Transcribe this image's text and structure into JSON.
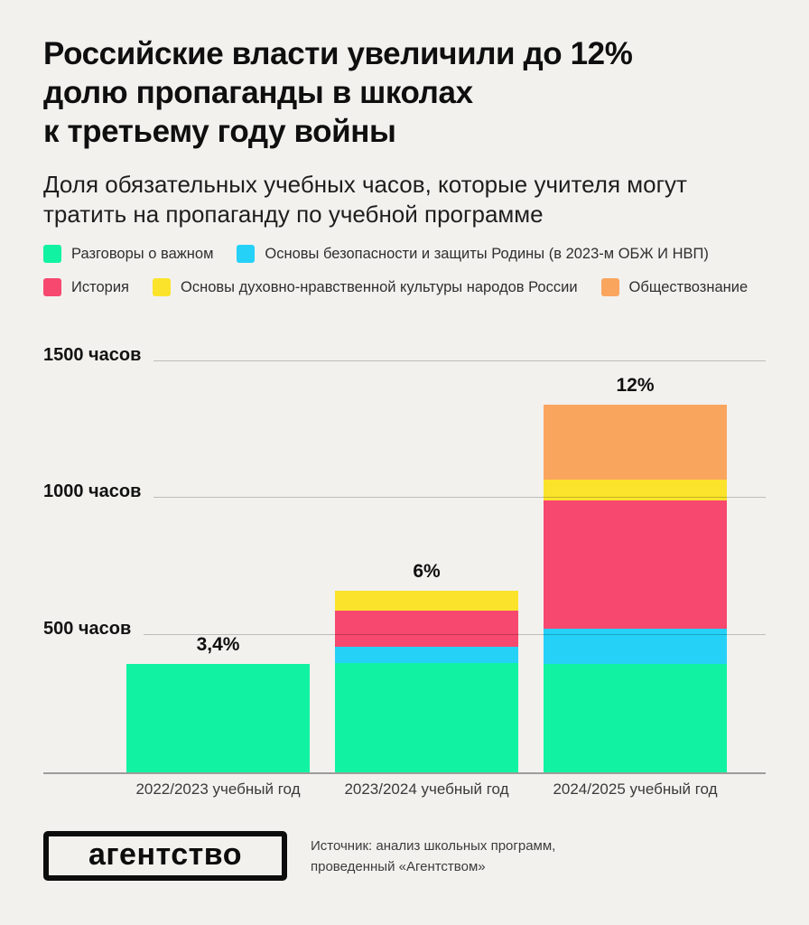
{
  "page": {
    "title": "Российские власти увеличили до 12%\nдолю пропаганды в школах\nк третьему году войны",
    "subtitle": "Доля обязательных учебных часов, которые учителя могут\nтратить на пропаганду по учебной программе"
  },
  "colors": {
    "background": "#f2f1ee",
    "green": "#11f3a2",
    "cyan": "#26d1f8",
    "pink": "#f7486f",
    "yellow": "#fbe32b",
    "orange": "#faa55e",
    "gridline": "rgba(0,0,0,0.22)",
    "baseline": "rgba(0,0,0,0.35)"
  },
  "chart_data": {
    "type": "bar",
    "subtype": "stacked",
    "unit": "часов",
    "categories": [
      "2022/2023 учебный год",
      "2023/2024 учебный год",
      "2024/2025 учебный год"
    ],
    "series": [
      {
        "name": "Разговоры о важном",
        "color": "#11f3a2",
        "values": [
          395,
          400,
          395
        ]
      },
      {
        "name": "Основы безопасности и защиты Родины (в 2023-м ОБЖ И НВП)",
        "color": "#26d1f8",
        "values": [
          0,
          60,
          130
        ]
      },
      {
        "name": "История",
        "color": "#f7486f",
        "values": [
          0,
          130,
          470
        ]
      },
      {
        "name": "Основы духовно-нравственной культуры народов России",
        "color": "#fbe32b",
        "values": [
          0,
          75,
          75
        ]
      },
      {
        "name": "Обществознание",
        "color": "#faa55e",
        "values": [
          0,
          0,
          275
        ]
      }
    ],
    "totals_hours": [
      395,
      665,
      1345
    ],
    "bar_value_labels": [
      "3,4%",
      "6%",
      "12%"
    ],
    "y_ticks": [
      {
        "value": 500,
        "label": "500 часов"
      },
      {
        "value": 1000,
        "label": "1000 часов"
      },
      {
        "value": 1500,
        "label": "1500 часов"
      }
    ],
    "ylim": [
      0,
      1520
    ],
    "grid": true,
    "legend_position": "top",
    "legend_rows": [
      [
        0,
        1
      ],
      [
        2,
        3,
        4
      ]
    ]
  },
  "footer": {
    "logo_text": "агентство",
    "source": "Источник: анализ школьных программ,\nпроведенный «Агентством»"
  }
}
